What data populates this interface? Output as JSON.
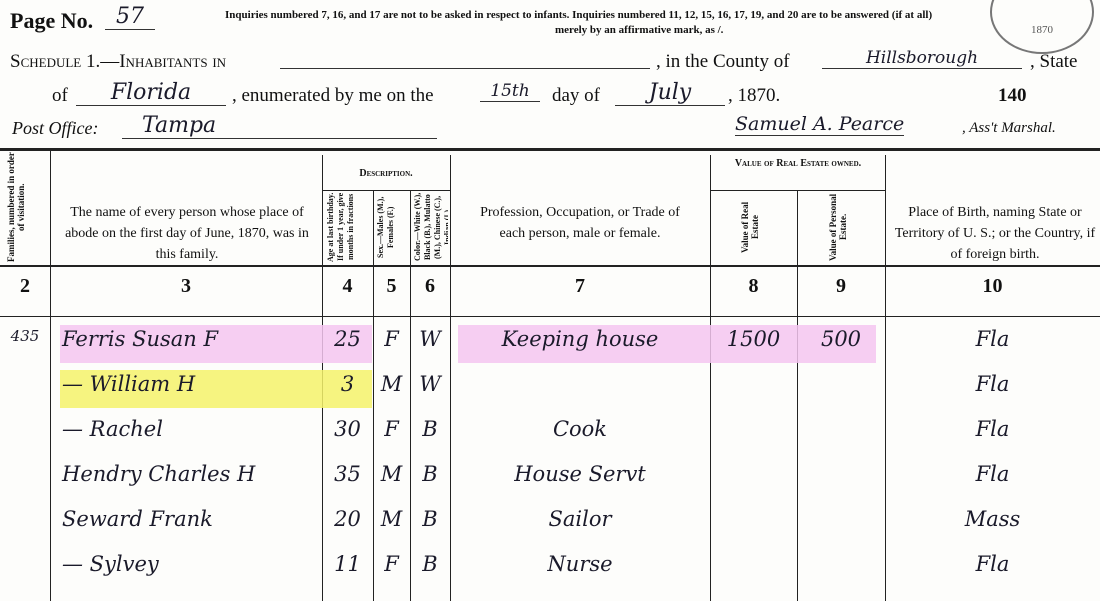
{
  "header": {
    "page_no_label": "Page No.",
    "page_no": "57",
    "notice": "Inquiries numbered 7, 16, and 17 are not to be asked in respect to infants.  Inquiries numbered 11, 12, 15, 16, 17, 19, and 20 are to be answered (if at all)",
    "notice2": "merely by an affirmative mark, as /.",
    "schedule_label": "Schedule 1.—Inhabitants in",
    "county_label": ", in the County of",
    "county": "Hillsborough",
    "state_label": ", State",
    "of_label": "of",
    "state": "Florida",
    "enumerated_label": ", enumerated by me on the",
    "day": "15th",
    "day_of_label": "day of",
    "month": "July",
    "year": ", 1870.",
    "sheet_no": "140",
    "post_office_label": "Post Office:",
    "post_office": "Tampa",
    "marshal_signature": "Samuel A. Pearce",
    "marshal_label": ", Ass't Marshal.",
    "stamp_year": "1870"
  },
  "columns": {
    "c2": "Families, numbered in order of visitation.",
    "c3": "The name of every person whose place of abode on the first day of June, 1870, was in this family.",
    "description": "Description.",
    "c4": "Age at last birthday. If under 1 year, give months in fractions",
    "c5": "Sex.—Males (M.), Females (F.)",
    "c6": "Color.—White (W.), Black (B.), Mulatto (M.), Chinese (C.), Indian (I.)",
    "c7": "Profession, Occupation, or Trade of each person, male or female.",
    "real_estate": "Value of Real Estate owned.",
    "c8": "Value of Real Estate",
    "c9": "Value of Personal Estate.",
    "c10": "Place of Birth, naming State or Territory of U. S.; or the Country, if of foreign birth.",
    "numbers": [
      "2",
      "3",
      "4",
      "5",
      "6",
      "7",
      "8",
      "9",
      "10"
    ]
  },
  "rows": [
    {
      "family": "435",
      "name": "Ferris Susan F",
      "age": "25",
      "sex": "F",
      "color": "W",
      "occupation": "Keeping house",
      "real_estate": "1500",
      "personal_estate": "500",
      "birthplace": "Fla",
      "highlight": "#f4c6f0"
    },
    {
      "family": "",
      "name": "— William H",
      "age": "3",
      "sex": "M",
      "color": "W",
      "occupation": "",
      "real_estate": "",
      "personal_estate": "",
      "birthplace": "Fla",
      "highlight": "#f4f26a"
    },
    {
      "family": "",
      "name": "— Rachel",
      "age": "30",
      "sex": "F",
      "color": "B",
      "occupation": "Cook",
      "real_estate": "",
      "personal_estate": "",
      "birthplace": "Fla",
      "highlight": ""
    },
    {
      "family": "",
      "name": "Hendry Charles H",
      "age": "35",
      "sex": "M",
      "color": "B",
      "occupation": "House Servt",
      "real_estate": "",
      "personal_estate": "",
      "birthplace": "Fla",
      "highlight": ""
    },
    {
      "family": "",
      "name": "Seward Frank",
      "age": "20",
      "sex": "M",
      "color": "B",
      "occupation": "Sailor",
      "real_estate": "",
      "personal_estate": "",
      "birthplace": "Mass",
      "highlight": ""
    },
    {
      "family": "",
      "name": "— Sylvey",
      "age": "11",
      "sex": "F",
      "color": "B",
      "occupation": "Nurse",
      "real_estate": "",
      "personal_estate": "",
      "birthplace": "Fla",
      "highlight": ""
    }
  ]
}
